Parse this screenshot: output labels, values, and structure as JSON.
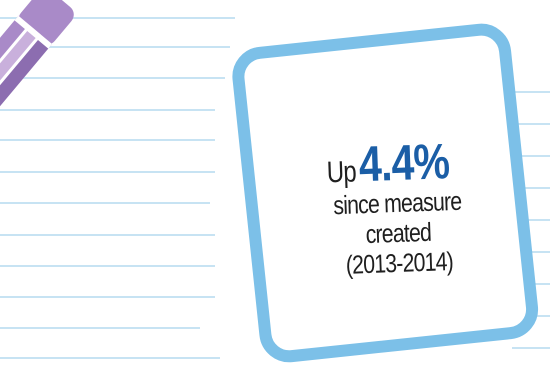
{
  "stat": {
    "prefix": "Up",
    "value": "4.4%",
    "line1": "since measure",
    "line2": "created",
    "line3": "(2013-2014)"
  },
  "colors": {
    "accent_blue": "#1b5ea6",
    "frame_blue": "#7cc0e8",
    "pencil_light": "#c9b0dc",
    "pencil_mid": "#a98ac8",
    "pencil_dark": "#8c6db0",
    "ruled_line": "#c7e3f3"
  },
  "icons": {
    "pencil": "pencil-icon",
    "card": "note-card-frame"
  }
}
